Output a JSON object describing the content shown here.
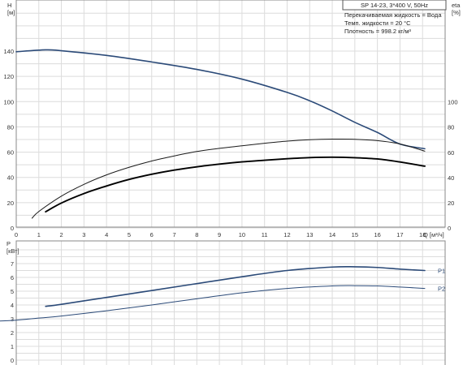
{
  "chart_data": [
    {
      "type": "line",
      "xlabel": "Q [м³/ч]",
      "ylabel_left": "H\n[м]",
      "ylabel_right": "eta\n[%]",
      "title_box": "SP 14-23, 3*400 V, 50Hz",
      "annotations": [
        "Перекачиваемая жидкость = Вода",
        "Темп. жидкости = 20 °C",
        "Плотность = 998.2 кг/м³"
      ],
      "xlim": [
        0,
        19
      ],
      "ylim_left": [
        0,
        160
      ],
      "ylim_right": [
        0,
        120
      ],
      "grid": true,
      "x_ticks": [
        "0",
        "1",
        "2",
        "3",
        "4",
        "5",
        "6",
        "7",
        "8",
        "9",
        "10",
        "11",
        "12",
        "13",
        "14",
        "15",
        "16",
        "17",
        "18"
      ],
      "y_ticks_left": [
        "0",
        "20",
        "40",
        "60",
        "80",
        "100",
        "120",
        "140"
      ],
      "y_ticks_right": [
        "0",
        "20",
        "40",
        "60",
        "80",
        "100"
      ],
      "series": [
        {
          "key": "head",
          "axis": "left",
          "color": "#2b4a78",
          "x": [
            0,
            1.3,
            2,
            4,
            6,
            8,
            10,
            12,
            13,
            14,
            15,
            16,
            17,
            18.1
          ],
          "y": [
            139.5,
            141,
            140.3,
            136.6,
            131.4,
            125.5,
            117.8,
            107.3,
            100.7,
            92.6,
            83.6,
            75.6,
            66.4,
            62.7
          ]
        },
        {
          "key": "efficiency-total",
          "axis": "left",
          "color": "#1a1a1a",
          "x": [
            0.7,
            1,
            2,
            3,
            4,
            5,
            6,
            7,
            8,
            9,
            10,
            11,
            12,
            13,
            14,
            15,
            16,
            17,
            18.1
          ],
          "y": [
            7.7,
            13,
            25.2,
            34.5,
            42,
            48,
            53,
            57,
            60.5,
            63,
            65,
            67,
            68.7,
            69.8,
            70.3,
            70.2,
            69.1,
            66.5,
            60.8
          ]
        },
        {
          "key": "efficiency-pump",
          "axis": "left",
          "color": "#000000",
          "x": [
            1.3,
            2,
            3,
            4,
            5,
            6,
            7,
            8,
            9,
            10,
            11,
            12,
            13,
            14,
            15,
            16,
            17,
            18.1
          ],
          "y": [
            12.8,
            19.7,
            27.2,
            33.2,
            38.4,
            42.5,
            45.8,
            48.4,
            50.5,
            52.3,
            53.6,
            54.8,
            55.7,
            56,
            55.6,
            54.6,
            52.2,
            48.9
          ]
        }
      ]
    },
    {
      "type": "line",
      "ylabel": "P\n[кВт]",
      "xlim": [
        -0.8,
        19
      ],
      "ylim": [
        0,
        8
      ],
      "grid": true,
      "y_ticks": [
        "0",
        "1",
        "2",
        "3",
        "4",
        "5",
        "6",
        "7"
      ],
      "series": [
        {
          "name": "P1",
          "color": "#2b4a78",
          "x": [
            1.3,
            2,
            4,
            6,
            8,
            10,
            12,
            14,
            15,
            16,
            17,
            18.1
          ],
          "y": [
            3.9,
            4.05,
            4.55,
            5.05,
            5.55,
            6.05,
            6.5,
            6.75,
            6.77,
            6.72,
            6.6,
            6.5
          ]
        },
        {
          "name": "P2",
          "color": "#2b4a78",
          "x": [
            -0.8,
            0,
            1,
            2,
            4,
            6,
            8,
            10,
            12,
            14,
            15,
            16,
            17,
            18.1
          ],
          "y": [
            2.82,
            2.9,
            3.05,
            3.2,
            3.58,
            4.0,
            4.45,
            4.88,
            5.2,
            5.38,
            5.4,
            5.38,
            5.3,
            5.2
          ]
        }
      ]
    }
  ]
}
